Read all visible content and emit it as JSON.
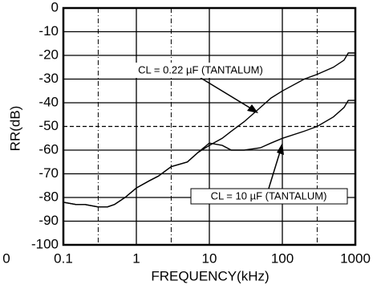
{
  "chart_data": {
    "type": "line",
    "x_label": "FREQUENCY(kHz)",
    "y_label": "RR(dB)",
    "corner_label": "0",
    "x": [
      0.1,
      0.15,
      0.2,
      0.3,
      0.4,
      0.5,
      0.7,
      1,
      1.5,
      2,
      3,
      5,
      7,
      10,
      15,
      20,
      30,
      50,
      70,
      100,
      200,
      300,
      500,
      700,
      800,
      1000
    ],
    "series": [
      {
        "name": "CL = 0.22 µF (TANTALUM)",
        "color": "#000000",
        "values": [
          -82,
          -83,
          -83,
          -84,
          -84,
          -83,
          -80,
          -76,
          -73,
          -71,
          -67,
          -65,
          -61,
          -58,
          -55,
          -52,
          -48,
          -42,
          -38,
          -35,
          -30,
          -28,
          -25,
          -22,
          -19,
          -19
        ]
      },
      {
        "name": "CL = 10 µF (TANTALUM)",
        "color": "#000000",
        "values": [
          -82,
          -83,
          -83,
          -84,
          -84,
          -83,
          -80,
          -76,
          -73,
          -71,
          -67,
          -65,
          -61,
          -57,
          -58,
          -60,
          -60,
          -59,
          -57,
          -55,
          -52,
          -50,
          -46,
          -42,
          -39,
          -39
        ]
      }
    ],
    "xscale": "log",
    "xlim": [
      0.1,
      1000
    ],
    "xticks": [
      0.1,
      1,
      10,
      100,
      1000
    ],
    "ylim": [
      -100,
      0
    ],
    "yticks": [
      0,
      -10,
      -20,
      -30,
      -40,
      -50,
      -60,
      -70,
      -80,
      -90,
      -100
    ],
    "x_dashed_gridlines": [
      0.3,
      3,
      300
    ],
    "y_dashed_gridlines": [
      -50
    ],
    "grid": true
  }
}
